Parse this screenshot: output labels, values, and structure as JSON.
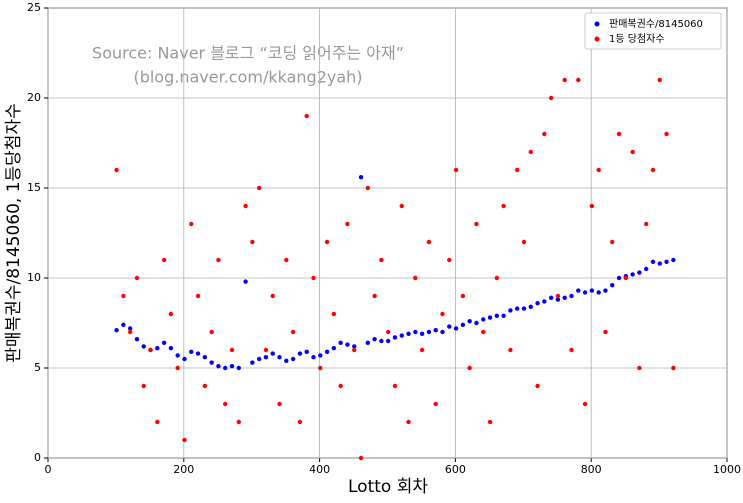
{
  "chart_data": {
    "type": "scatter",
    "annotations": [
      "Source: Naver 블로그 “코딩 읽어주는 아재”",
      "(blog.naver.com/kkang2yah)"
    ],
    "x_label": "Lotto 회차",
    "y_label": "판매복권수/8145060, 1등당첨자수",
    "xlim": [
      0,
      1000
    ],
    "xticks": [
      0,
      200,
      400,
      600,
      800,
      1000
    ],
    "ylim": [
      0,
      25
    ],
    "yticks": [
      0,
      5,
      10,
      15,
      20,
      25
    ],
    "grid": true,
    "legend": "upper right",
    "x": [
      101,
      111,
      121,
      131,
      141,
      151,
      161,
      171,
      181,
      191,
      201,
      211,
      221,
      231,
      241,
      251,
      261,
      271,
      281,
      291,
      301,
      311,
      321,
      331,
      341,
      351,
      361,
      371,
      381,
      391,
      401,
      411,
      421,
      431,
      441,
      451,
      461,
      471,
      481,
      491,
      501,
      511,
      521,
      531,
      541,
      551,
      561,
      571,
      581,
      591,
      601,
      611,
      621,
      631,
      641,
      651,
      661,
      671,
      681,
      691,
      701,
      711,
      721,
      731,
      741,
      751,
      761,
      771,
      781,
      791,
      801,
      811,
      821,
      831,
      841,
      851,
      861,
      871,
      881,
      891,
      901,
      911,
      921
    ],
    "series": [
      {
        "name": "판매복권수/8145060",
        "color": "#0000ff",
        "values": [
          7.1,
          7.4,
          7.2,
          6.6,
          6.2,
          6.0,
          6.1,
          6.4,
          6.1,
          5.7,
          5.5,
          5.9,
          5.8,
          5.6,
          5.3,
          5.1,
          5.0,
          5.1,
          5.0,
          9.8,
          5.3,
          5.5,
          5.6,
          5.8,
          5.6,
          5.4,
          5.5,
          5.8,
          5.9,
          5.6,
          5.7,
          5.9,
          6.1,
          6.4,
          6.3,
          6.2,
          15.6,
          6.4,
          6.6,
          6.5,
          6.5,
          6.7,
          6.8,
          6.9,
          7.0,
          6.9,
          7.0,
          7.1,
          7.0,
          7.3,
          7.2,
          7.4,
          7.6,
          7.5,
          7.7,
          7.8,
          7.9,
          7.9,
          8.2,
          8.3,
          8.3,
          8.4,
          8.6,
          8.7,
          8.9,
          8.8,
          8.9,
          9.0,
          9.3,
          9.2,
          9.3,
          9.2,
          9.3,
          9.6,
          10.0,
          10.1,
          10.2,
          10.3,
          10.5,
          10.9,
          10.8,
          10.9,
          11.0
        ]
      },
      {
        "name": "1등 당첨자수",
        "color": "#ff0000",
        "values": [
          16,
          9,
          7,
          10,
          4,
          6,
          2,
          11,
          8,
          5,
          1,
          13,
          9,
          4,
          7,
          11,
          3,
          6,
          2,
          14,
          12,
          15,
          6,
          9,
          3,
          11,
          7,
          2,
          19,
          10,
          5,
          12,
          8,
          4,
          13,
          6,
          0,
          15,
          9,
          11,
          7,
          4,
          14,
          2,
          10,
          6,
          12,
          3,
          8,
          11,
          16,
          9,
          5,
          13,
          7,
          2,
          10,
          14,
          6,
          16,
          12,
          17,
          4,
          18,
          20,
          9,
          21,
          6,
          21,
          3,
          14,
          16,
          7,
          12,
          18,
          10,
          17,
          5,
          13,
          16,
          21,
          18,
          5
        ]
      }
    ]
  }
}
